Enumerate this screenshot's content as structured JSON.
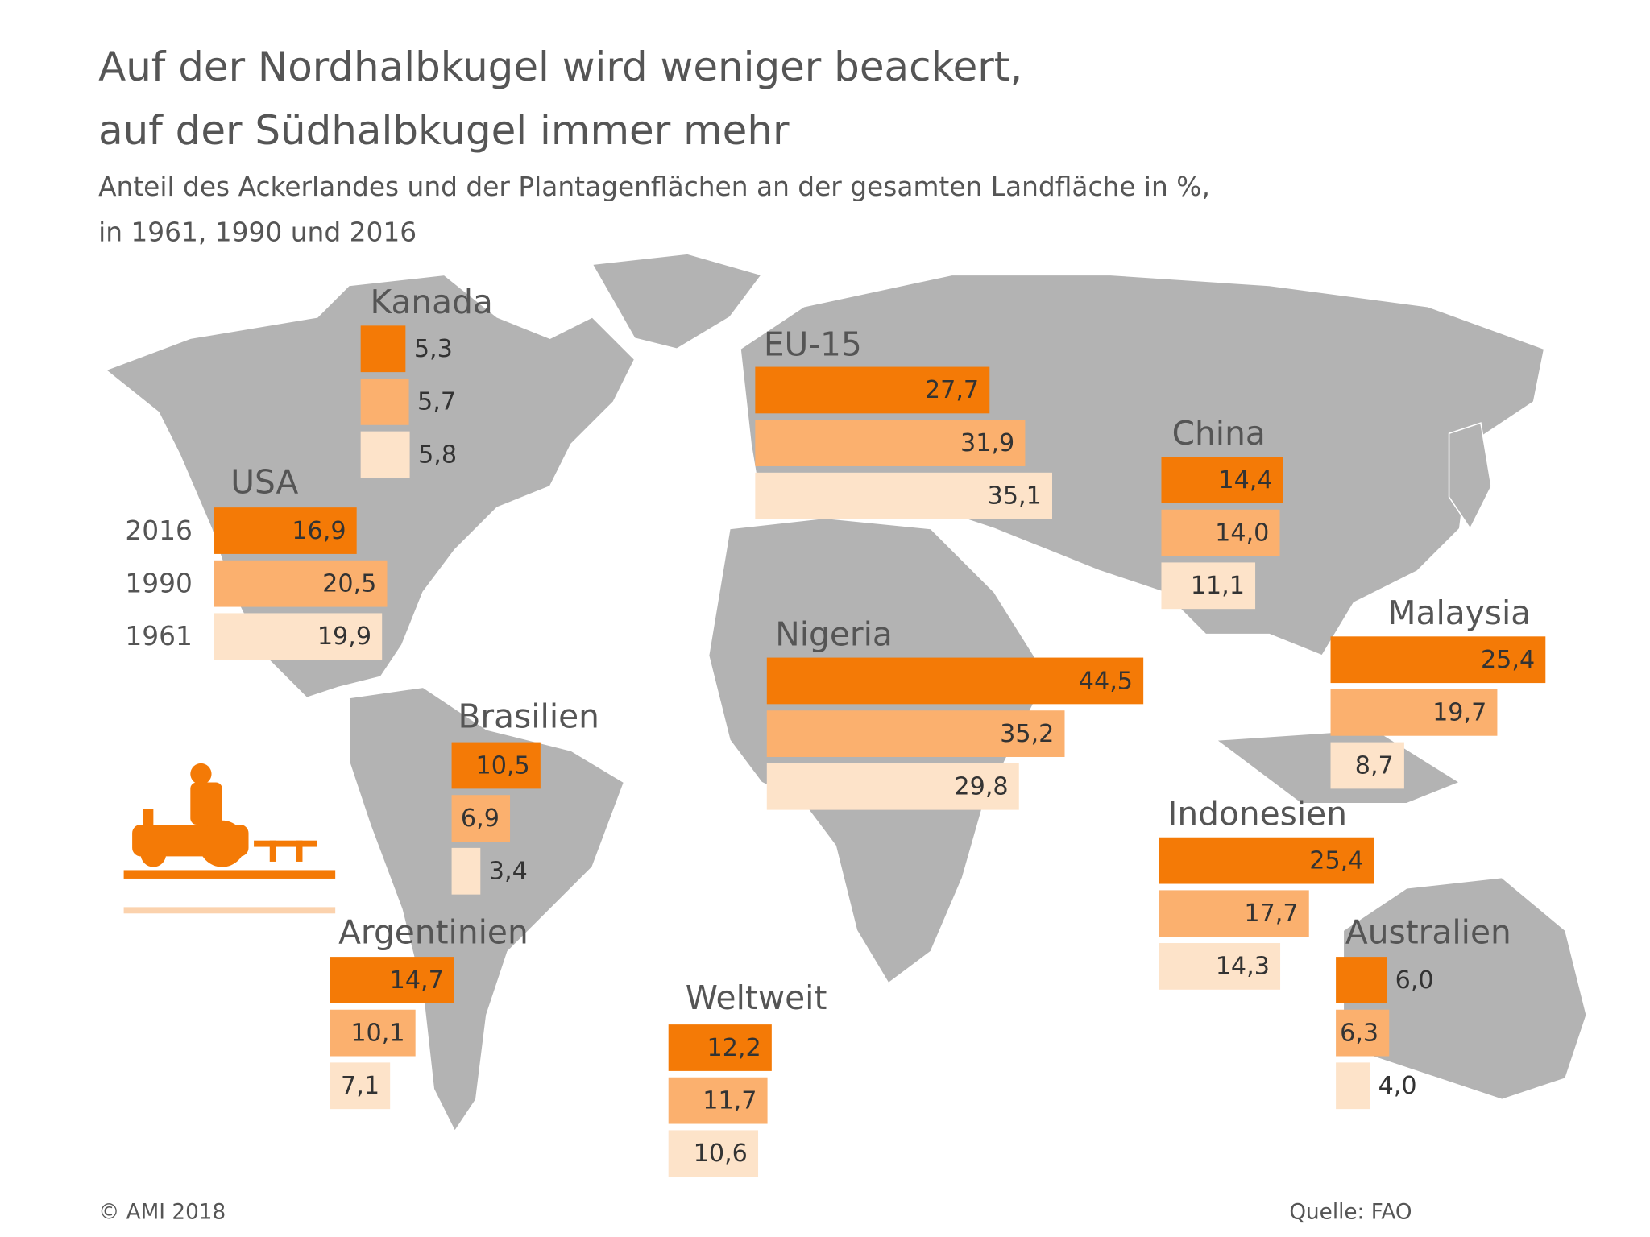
{
  "chart_data": {
    "type": "bar",
    "title": [
      "Auf der Nordhalbkugel wird weniger beackert,",
      "auf der Südhalbkugel immer mehr"
    ],
    "subtitle": [
      "Anteil des Ackerlandes und der Plantagenflächen an der gesamten Landfläche in %,",
      "in 1961, 1990 und 2016"
    ],
    "categories": [
      "Kanada",
      "EU-15",
      "China",
      "USA",
      "Malaysia",
      "Nigeria",
      "Brasilien",
      "Indonesien",
      "Argentinien",
      "Australien",
      "Weltweit"
    ],
    "series": [
      {
        "name": "2016",
        "color": "#f47a06",
        "values": [
          5.3,
          27.7,
          14.4,
          16.9,
          25.4,
          44.5,
          10.5,
          25.4,
          14.7,
          6.0,
          12.2
        ],
        "value_labels": [
          "5,3",
          "27,7",
          "14,4",
          "16,9",
          "25,4",
          "44,5",
          "10,5",
          "25,4",
          "14,7",
          "6,0",
          "12,2"
        ]
      },
      {
        "name": "1990",
        "color": "#fbb06e",
        "values": [
          5.7,
          31.9,
          14.0,
          20.5,
          19.7,
          35.2,
          6.9,
          17.7,
          10.1,
          6.3,
          11.7
        ],
        "value_labels": [
          "5,7",
          "31,9",
          "14,0",
          "20,5",
          "19,7",
          "35,2",
          "6,9",
          "17,7",
          "10,1",
          "6,3",
          "11,7"
        ]
      },
      {
        "name": "1961",
        "color": "#fde3c9",
        "values": [
          5.8,
          35.1,
          11.1,
          19.9,
          8.7,
          29.8,
          3.4,
          14.3,
          7.1,
          4.0,
          10.6
        ],
        "value_labels": [
          "5,8",
          "35,1",
          "11,1",
          "19,9",
          "8,7",
          "29,8",
          "3,4",
          "14,3",
          "7,1",
          "4,0",
          "10,6"
        ]
      }
    ],
    "credit": "© AMI 2018",
    "source": "Quelle: FAO"
  }
}
